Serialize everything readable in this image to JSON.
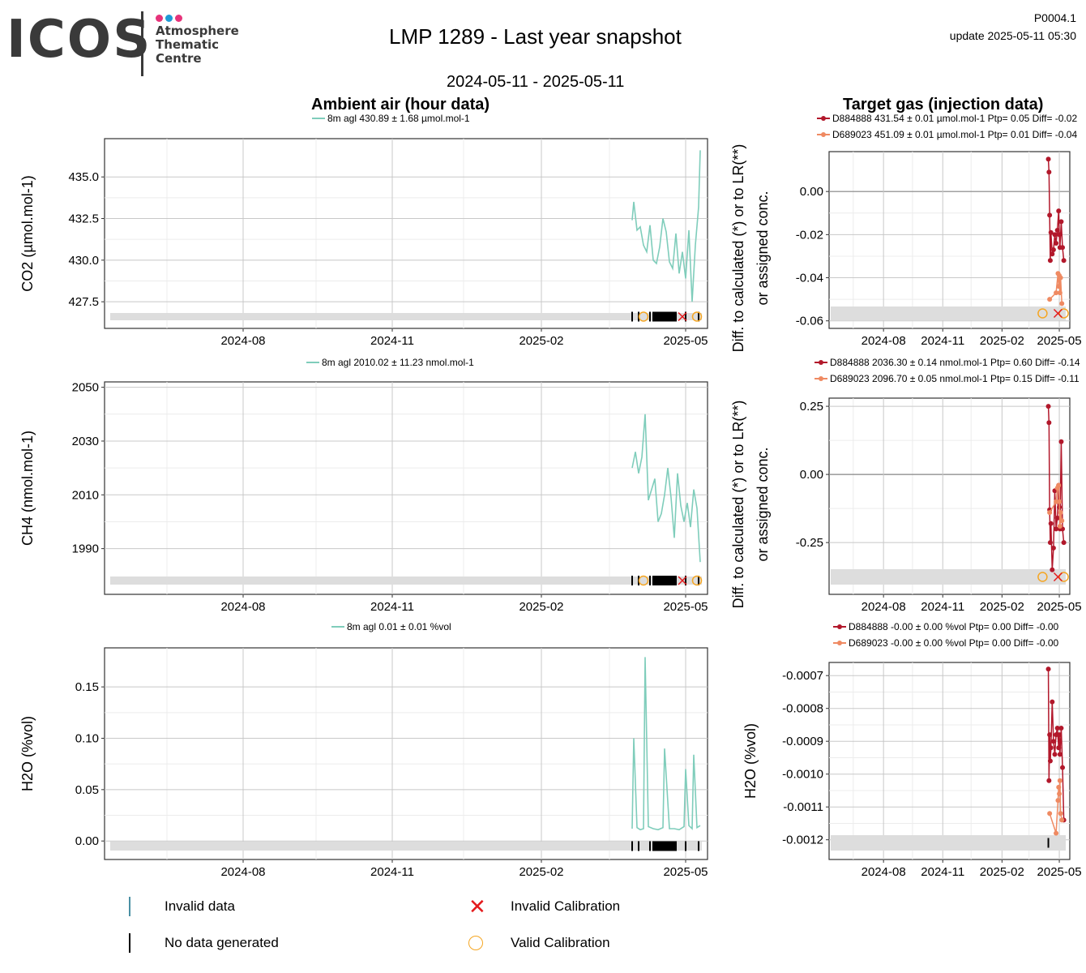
{
  "header": {
    "logo_text": "ICOS",
    "logo_sub": [
      "Atmosphere",
      "Thematic",
      "Centre"
    ],
    "title": "LMP 1289 - Last year snapshot",
    "date_range": "2024-05-11 - 2025-05-11",
    "code": "P0004.1",
    "update": "update  2025-05-11 05:30"
  },
  "sections": {
    "left": "Ambient air (hour data)",
    "right": "Target gas (injection data)"
  },
  "colors": {
    "ambient": "#7fcdbb",
    "target1": "#b2182b",
    "target2": "#ef8a62",
    "grid_major": "#c8c8c8",
    "grid_minor": "#ececec",
    "flag_band": "#dddddd",
    "invalid_data": "#4a90a4",
    "invalid_cal": "#e41a1c",
    "valid_cal": "#f5a623"
  },
  "time_axis": {
    "start": "2024-05-11",
    "end": "2025-05-11",
    "ticks": [
      "2024-08",
      "2024-11",
      "2025-02",
      "2025-05"
    ]
  },
  "chart_data": [
    {
      "type": "line",
      "panel": "co2-ambient",
      "ylabel": "CO2 (µmol.mol-1)",
      "ylim": [
        425.9,
        437.3
      ],
      "yticks": [
        "435.0",
        "432.5",
        "430.0",
        "427.5"
      ],
      "legend": "8m agl 430.89 ± 1.68 µmol.mol-1",
      "series": [
        {
          "name": "8m agl",
          "x": [
            "2025-03-29",
            "2025-03-30",
            "2025-04-01",
            "2025-04-03",
            "2025-04-05",
            "2025-04-07",
            "2025-04-09",
            "2025-04-11",
            "2025-04-13",
            "2025-04-15",
            "2025-04-17",
            "2025-04-19",
            "2025-04-21",
            "2025-04-23",
            "2025-04-25",
            "2025-04-27",
            "2025-04-29",
            "2025-05-01",
            "2025-05-03",
            "2025-05-05",
            "2025-05-07",
            "2025-05-09",
            "2025-05-10"
          ],
          "values": [
            432.4,
            433.5,
            431.8,
            432.0,
            430.9,
            430.5,
            432.1,
            430.0,
            429.8,
            430.8,
            432.5,
            431.7,
            429.9,
            429.5,
            431.6,
            429.2,
            430.5,
            428.9,
            431.8,
            427.5,
            430.9,
            433.2,
            436.6
          ]
        }
      ]
    },
    {
      "type": "line",
      "panel": "ch4-ambient",
      "ylabel": "CH4 (nmol.mol-1)",
      "ylim": [
        1973,
        2052
      ],
      "yticks": [
        "2050",
        "2030",
        "2010",
        "1990"
      ],
      "legend": "8m agl 2010.02 ± 11.23 nmol.mol-1",
      "series": [
        {
          "name": "8m agl",
          "x": [
            "2025-03-29",
            "2025-03-31",
            "2025-04-02",
            "2025-04-04",
            "2025-04-06",
            "2025-04-08",
            "2025-04-10",
            "2025-04-12",
            "2025-04-14",
            "2025-04-16",
            "2025-04-18",
            "2025-04-20",
            "2025-04-22",
            "2025-04-24",
            "2025-04-26",
            "2025-04-28",
            "2025-04-30",
            "2025-05-02",
            "2025-05-04",
            "2025-05-06",
            "2025-05-08",
            "2025-05-10"
          ],
          "values": [
            2020,
            2026,
            2018,
            2024,
            2040,
            2008,
            2012,
            2016,
            2000,
            2003,
            2010,
            2020,
            2009,
            1994,
            2018,
            2006,
            2000,
            2007,
            1998,
            2012,
            2005,
            1985
          ]
        }
      ]
    },
    {
      "type": "line",
      "panel": "h2o-ambient",
      "ylabel": "H2O (%vol)",
      "ylim": [
        -0.018,
        0.188
      ],
      "yticks": [
        "0.15",
        "0.10",
        "0.05",
        "0.00"
      ],
      "legend": "8m agl 0.01 ± 0.01 %vol",
      "series": [
        {
          "name": "8m agl",
          "x": [
            "2025-03-29",
            "2025-03-30",
            "2025-04-01",
            "2025-04-03",
            "2025-04-05",
            "2025-04-06",
            "2025-04-08",
            "2025-04-11",
            "2025-04-14",
            "2025-04-17",
            "2025-04-18",
            "2025-04-21",
            "2025-04-24",
            "2025-04-27",
            "2025-04-30",
            "2025-05-01",
            "2025-05-03",
            "2025-05-05",
            "2025-05-06",
            "2025-05-08",
            "2025-05-10"
          ],
          "values": [
            0.012,
            0.1,
            0.013,
            0.011,
            0.012,
            0.179,
            0.014,
            0.012,
            0.011,
            0.013,
            0.09,
            0.012,
            0.012,
            0.011,
            0.014,
            0.07,
            0.015,
            0.012,
            0.084,
            0.013,
            0.015
          ]
        }
      ]
    },
    {
      "type": "line",
      "panel": "co2-target",
      "ylabel": "Diff. to calculated (*) or to LR(**) or assigned conc.",
      "ylim": [
        -0.0635,
        0.0185
      ],
      "yticks": [
        "0.00",
        "-0.02",
        "-0.04",
        "-0.06"
      ],
      "legend": [
        "D884888 431.54 ± 0.01 µmol.mol-1 Ptp= 0.05 Diff= -0.02",
        "D689023 451.09 ± 0.01 µmol.mol-1 Ptp= 0.01 Diff= -0.04"
      ],
      "series": [
        {
          "name": "D884888",
          "x": [
            "2025-04-14",
            "2025-04-15",
            "2025-04-16",
            "2025-04-17",
            "2025-04-18",
            "2025-04-20",
            "2025-04-22",
            "2025-04-24",
            "2025-04-26",
            "2025-04-28",
            "2025-04-30",
            "2025-05-01",
            "2025-05-02",
            "2025-05-04",
            "2025-05-06",
            "2025-05-08"
          ],
          "values": [
            0.015,
            0.009,
            -0.011,
            -0.032,
            -0.019,
            -0.029,
            -0.027,
            -0.02,
            -0.024,
            -0.018,
            -0.009,
            -0.02,
            -0.026,
            -0.014,
            -0.026,
            -0.032
          ]
        },
        {
          "name": "D689023",
          "x": [
            "2025-04-16",
            "2025-04-26",
            "2025-04-29",
            "2025-04-30",
            "2025-05-01",
            "2025-05-02",
            "2025-05-03",
            "2025-05-05"
          ],
          "values": [
            -0.05,
            -0.047,
            -0.038,
            -0.044,
            -0.039,
            -0.047,
            -0.04,
            -0.052
          ]
        }
      ]
    },
    {
      "type": "line",
      "panel": "ch4-target",
      "ylabel": "Diff. to calculated (*) or to LR(**) or assigned conc.",
      "ylim": [
        -0.44,
        0.28
      ],
      "yticks": [
        "0.25",
        "0.00",
        "-0.25"
      ],
      "legend": [
        "D884888 2036.30 ± 0.14 nmol.mol-1 Ptp= 0.60 Diff= -0.14",
        "D689023 2096.70 ± 0.05 nmol.mol-1 Ptp= 0.15 Diff= -0.11"
      ],
      "series": [
        {
          "name": "D884888",
          "x": [
            "2025-04-14",
            "2025-04-15",
            "2025-04-16",
            "2025-04-17",
            "2025-04-18",
            "2025-04-20",
            "2025-04-22",
            "2025-04-24",
            "2025-04-26",
            "2025-04-28",
            "2025-04-30",
            "2025-05-01",
            "2025-05-02",
            "2025-05-04",
            "2025-05-06",
            "2025-05-08"
          ],
          "values": [
            0.25,
            0.19,
            -0.13,
            -0.25,
            -0.18,
            -0.35,
            -0.27,
            -0.06,
            -0.2,
            -0.16,
            -0.04,
            -0.12,
            -0.2,
            0.12,
            -0.2,
            -0.25
          ]
        },
        {
          "name": "D689023",
          "x": [
            "2025-04-16",
            "2025-04-26",
            "2025-04-28",
            "2025-04-30",
            "2025-05-01",
            "2025-05-02",
            "2025-05-03",
            "2025-05-05"
          ],
          "values": [
            -0.14,
            -0.1,
            -0.05,
            -0.04,
            -0.1,
            -0.19,
            -0.14,
            -0.17
          ]
        }
      ]
    },
    {
      "type": "line",
      "panel": "h2o-target",
      "ylabel": "H2O (%vol)",
      "ylim": [
        -0.00126,
        -0.00066
      ],
      "yticks": [
        "-0.0007",
        "-0.0008",
        "-0.0009",
        "-0.0010",
        "-0.0011",
        "-0.0012"
      ],
      "legend": [
        "D884888 -0.00 ± 0.00 %vol Ptp= 0.00 Diff= -0.00",
        "D689023 -0.00 ± 0.00 %vol Ptp= 0.00 Diff= -0.00"
      ],
      "series": [
        {
          "name": "D884888",
          "x": [
            "2025-04-14",
            "2025-04-15",
            "2025-04-16",
            "2025-04-17",
            "2025-04-18",
            "2025-04-20",
            "2025-04-22",
            "2025-04-24",
            "2025-04-26",
            "2025-04-28",
            "2025-04-30",
            "2025-05-01",
            "2025-05-02",
            "2025-05-04",
            "2025-05-06",
            "2025-05-08"
          ],
          "values": [
            -0.00068,
            -0.00102,
            -0.00088,
            -0.00096,
            -0.00092,
            -0.00078,
            -0.0009,
            -0.00094,
            -0.00088,
            -0.00086,
            -0.00092,
            -0.00088,
            -0.00094,
            -0.00086,
            -0.00098,
            -0.00114
          ]
        },
        {
          "name": "D689023",
          "x": [
            "2025-04-16",
            "2025-04-26",
            "2025-04-29",
            "2025-04-30",
            "2025-05-01",
            "2025-05-02",
            "2025-05-03",
            "2025-05-05"
          ],
          "values": [
            -0.00112,
            -0.00118,
            -0.00108,
            -0.00104,
            -0.00106,
            -0.00102,
            -0.00112,
            -0.00114
          ]
        }
      ]
    }
  ],
  "flags": {
    "no_data_ambient": [
      "2025-03-29",
      "2025-04-02",
      "2025-04-09",
      "2025-04-11",
      "2025-04-12",
      "2025-04-13",
      "2025-04-14",
      "2025-04-15",
      "2025-04-16",
      "2025-04-17",
      "2025-04-18",
      "2025-04-19",
      "2025-04-20",
      "2025-04-21",
      "2025-04-22",
      "2025-04-23",
      "2025-04-24",
      "2025-04-25",
      "2025-05-01",
      "2025-05-09"
    ],
    "no_data_target": [
      "2025-04-14"
    ],
    "valid_calibration": [
      "2025-04-05",
      "2025-05-08"
    ],
    "invalid_calibration": [
      "2025-04-29"
    ]
  },
  "legend": {
    "invalid_data": "Invalid data",
    "no_data": "No data generated",
    "invalid_cal": "Invalid Calibration",
    "valid_cal": "Valid Calibration"
  }
}
